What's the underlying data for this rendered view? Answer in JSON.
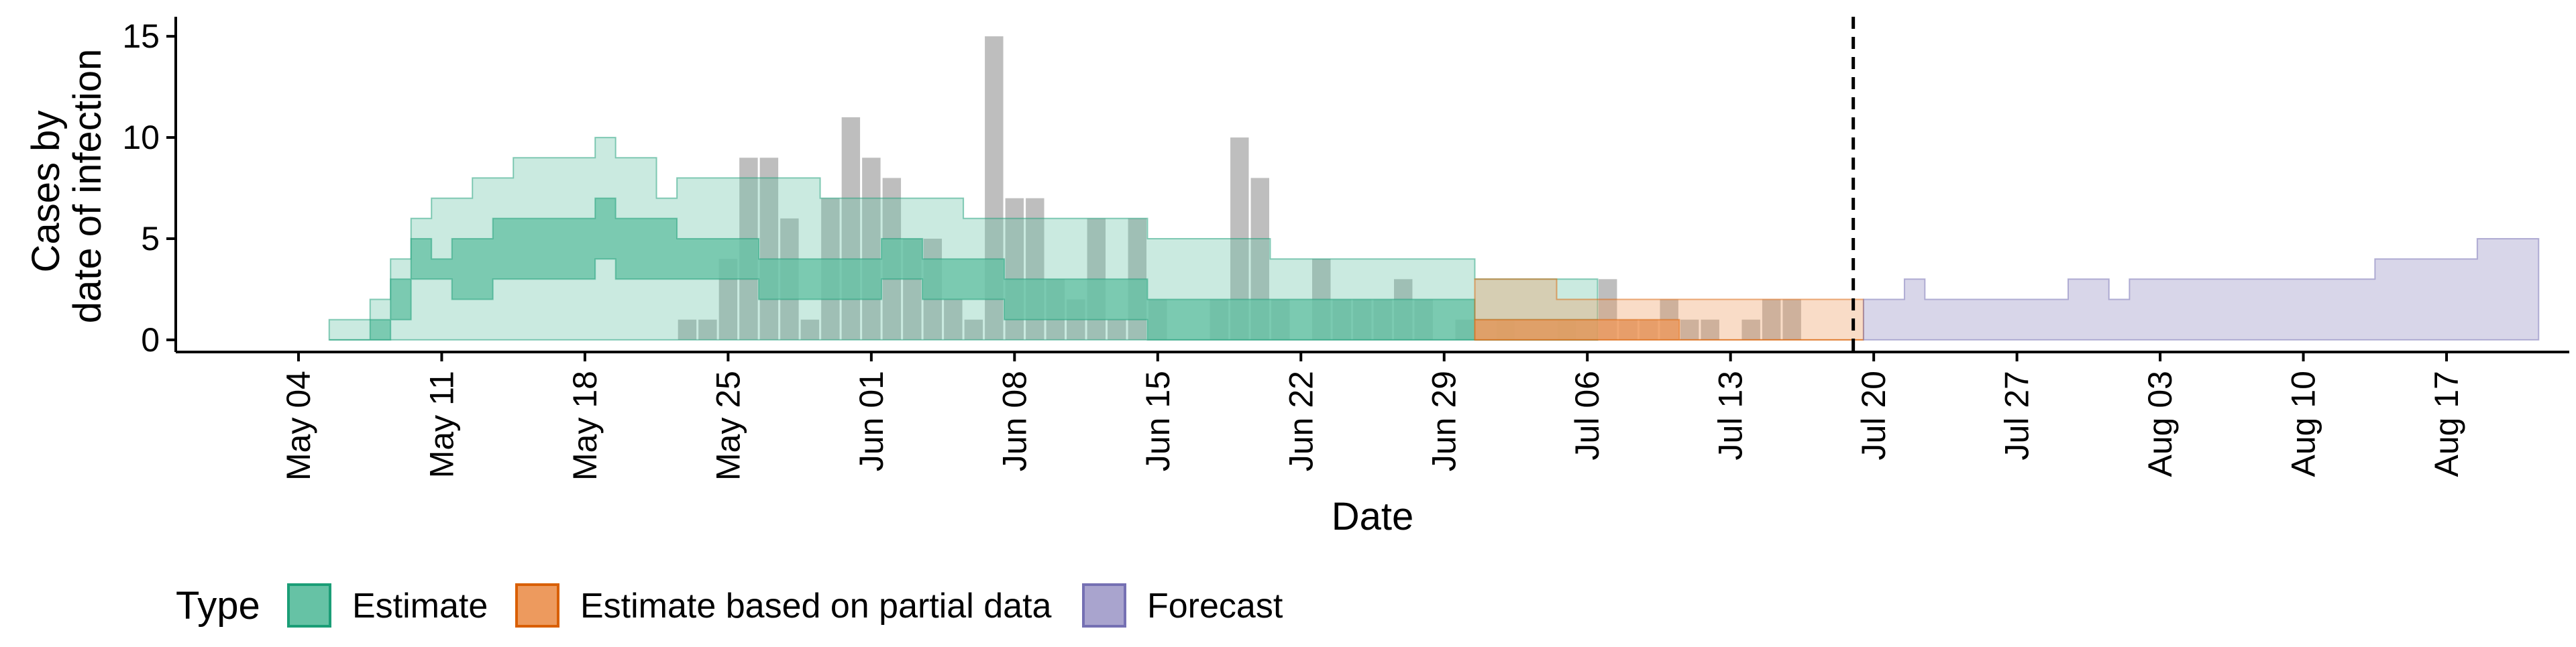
{
  "chart_data": {
    "type": "area",
    "title": "",
    "xlabel": "Date",
    "ylabel_lines": [
      "Cases by",
      "date of infection"
    ],
    "x_type": "date",
    "xlim": [
      "2020-04-28",
      "2020-08-23"
    ],
    "ylim": [
      -0.6,
      15.8
    ],
    "y_ticks": [
      0,
      5,
      10,
      15
    ],
    "x_ticks": [
      {
        "date": "2020-05-04",
        "label": "May 04"
      },
      {
        "date": "2020-05-11",
        "label": "May 11"
      },
      {
        "date": "2020-05-18",
        "label": "May 18"
      },
      {
        "date": "2020-05-25",
        "label": "May 25"
      },
      {
        "date": "2020-06-01",
        "label": "Jun 01"
      },
      {
        "date": "2020-06-08",
        "label": "Jun 08"
      },
      {
        "date": "2020-06-15",
        "label": "Jun 15"
      },
      {
        "date": "2020-06-22",
        "label": "Jun 22"
      },
      {
        "date": "2020-06-29",
        "label": "Jun 29"
      },
      {
        "date": "2020-07-06",
        "label": "Jul 06"
      },
      {
        "date": "2020-07-13",
        "label": "Jul 13"
      },
      {
        "date": "2020-07-20",
        "label": "Jul 20"
      },
      {
        "date": "2020-07-27",
        "label": "Jul 27"
      },
      {
        "date": "2020-08-03",
        "label": "Aug 03"
      },
      {
        "date": "2020-08-10",
        "label": "Aug 10"
      },
      {
        "date": "2020-08-17",
        "label": "Aug 17"
      }
    ],
    "vline": "2020-07-19",
    "grid": false,
    "legend": {
      "title": "Type",
      "position": "bottom",
      "entries": [
        {
          "label": "Estimate",
          "fill": "#66C2A5",
          "stroke": "#1B9E77"
        },
        {
          "label": "Estimate based on partial data",
          "fill": "#ED9A5E",
          "stroke": "#D95F02"
        },
        {
          "label": "Forecast",
          "fill": "#A9A4CE",
          "stroke": "#7570B3"
        }
      ]
    },
    "series": [
      {
        "name": "Estimate",
        "color": "#1B9E77",
        "start": "2020-05-06",
        "outer_upper": [
          1,
          1,
          2,
          4,
          6,
          7,
          7,
          8,
          8,
          9,
          9,
          9,
          9,
          10,
          9,
          9,
          7,
          8,
          8,
          8,
          8,
          8,
          8,
          8,
          7,
          7,
          7,
          7,
          7,
          7,
          7,
          6,
          6,
          6,
          6,
          6,
          6,
          6,
          6,
          6,
          5,
          5,
          5,
          5,
          5,
          5,
          4,
          4,
          4,
          4,
          4,
          4,
          4,
          4,
          4,
          4,
          3,
          3,
          3,
          3,
          3,
          3
        ],
        "outer_lower": [
          0,
          0,
          0,
          0,
          0,
          0,
          0,
          0,
          0,
          0,
          0,
          0,
          0,
          0,
          0,
          0,
          0,
          0,
          0,
          0,
          0,
          0,
          0,
          0,
          0,
          0,
          0,
          0,
          0,
          0,
          0,
          0,
          0,
          0,
          0,
          0,
          0,
          0,
          0,
          0,
          0,
          0,
          0,
          0,
          0,
          0,
          0,
          0,
          0,
          0,
          0,
          0,
          0,
          0,
          0,
          0,
          0,
          0,
          0,
          0,
          0,
          0
        ],
        "inner_upper": [
          0,
          0,
          1,
          3,
          5,
          4,
          5,
          5,
          6,
          6,
          6,
          6,
          6,
          7,
          6,
          6,
          6,
          5,
          5,
          5,
          5,
          4,
          4,
          4,
          4,
          4,
          4,
          5,
          5,
          4,
          4,
          4,
          4,
          3,
          3,
          3,
          3,
          3,
          3,
          3,
          2,
          2,
          2,
          2,
          2,
          2,
          2,
          2,
          2,
          2,
          2,
          2,
          2,
          2,
          2,
          2,
          1,
          1,
          1,
          1,
          1,
          1
        ],
        "inner_lower": [
          0,
          0,
          0,
          1,
          3,
          3,
          2,
          2,
          3,
          3,
          3,
          3,
          3,
          4,
          3,
          3,
          3,
          3,
          3,
          3,
          3,
          2,
          2,
          2,
          2,
          2,
          2,
          3,
          3,
          2,
          2,
          2,
          2,
          1,
          1,
          1,
          1,
          1,
          1,
          1,
          0,
          0,
          0,
          0,
          0,
          0,
          0,
          0,
          0,
          0,
          0,
          0,
          0,
          0,
          0,
          0,
          0,
          0,
          0,
          0,
          0,
          0
        ]
      },
      {
        "name": "Estimate based on partial data",
        "color": "#D95F02",
        "start": "2020-07-01",
        "outer_upper": [
          3,
          3,
          3,
          3,
          2,
          2,
          2,
          2,
          2,
          2,
          2,
          2,
          2,
          2,
          2,
          2,
          2,
          2,
          2
        ],
        "outer_lower": [
          0,
          0,
          0,
          0,
          0,
          0,
          0,
          0,
          0,
          0,
          0,
          0,
          0,
          0,
          0,
          0,
          0,
          0,
          0
        ],
        "inner_upper": [
          1,
          1,
          1,
          1,
          1,
          1,
          1,
          1,
          1,
          1,
          0,
          0,
          0,
          0,
          0,
          0,
          0,
          0,
          0
        ],
        "inner_lower": [
          0,
          0,
          0,
          0,
          0,
          0,
          0,
          0,
          0,
          0,
          0,
          0,
          0,
          0,
          0,
          0,
          0,
          0,
          0
        ]
      },
      {
        "name": "Forecast",
        "color": "#7570B3",
        "start": "2020-07-20",
        "outer_upper": [
          2,
          2,
          3,
          2,
          2,
          2,
          2,
          2,
          2,
          2,
          3,
          3,
          2,
          3,
          3,
          3,
          3,
          3,
          3,
          3,
          3,
          3,
          3,
          3,
          3,
          4,
          4,
          4,
          4,
          4,
          5,
          5,
          5
        ],
        "outer_lower": [
          0,
          0,
          0,
          0,
          0,
          0,
          0,
          0,
          0,
          0,
          0,
          0,
          0,
          0,
          0,
          0,
          0,
          0,
          0,
          0,
          0,
          0,
          0,
          0,
          0,
          0,
          0,
          0,
          0,
          0,
          0,
          0,
          0
        ]
      }
    ],
    "bars": {
      "start": "2020-05-23",
      "values": [
        1,
        1,
        4,
        9,
        9,
        6,
        1,
        7,
        11,
        9,
        8,
        5,
        5,
        2,
        1,
        15,
        7,
        7,
        3,
        2,
        6,
        1,
        6,
        2,
        0,
        0,
        2,
        10,
        8,
        2,
        0,
        4,
        2,
        2,
        2,
        3,
        2,
        0,
        1,
        0,
        1,
        0,
        0,
        1,
        0,
        3,
        1,
        1,
        2,
        1,
        1,
        0,
        1,
        2,
        2
      ],
      "color": "#BEBEBE"
    }
  }
}
